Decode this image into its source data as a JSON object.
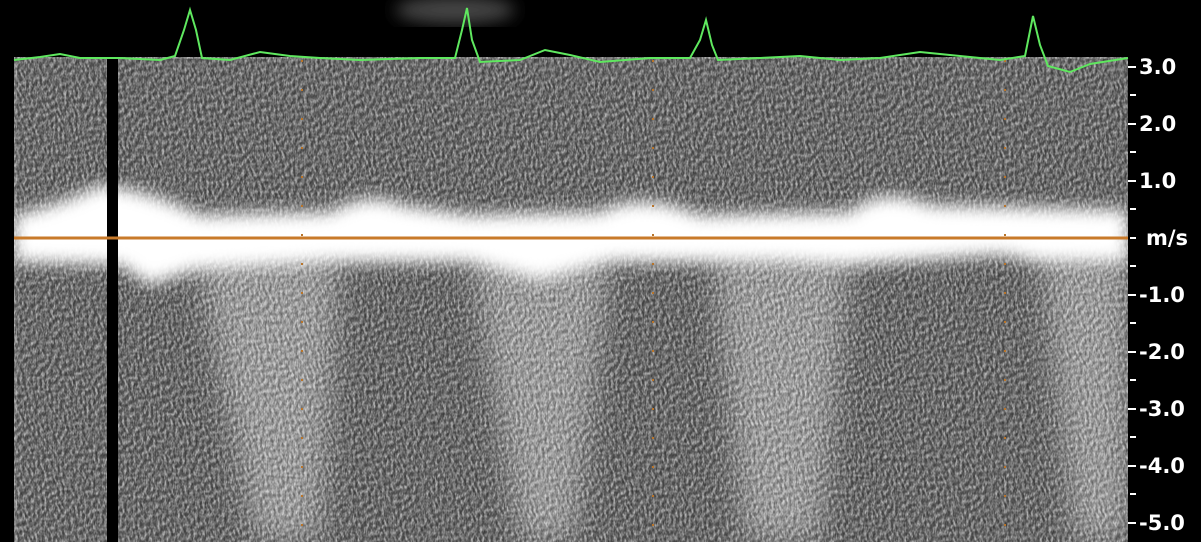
{
  "scale": {
    "unit": "m/s",
    "ticks": [
      {
        "value": 3,
        "label": "3.0"
      },
      {
        "value": 2,
        "label": "2.0"
      },
      {
        "value": 1,
        "label": "1.0"
      },
      {
        "value": -1,
        "label": "-1.0"
      },
      {
        "value": -2,
        "label": "-2.0"
      },
      {
        "value": -3,
        "label": "-3.0"
      },
      {
        "value": -4,
        "label": "-4.0"
      },
      {
        "value": -5,
        "label": "-5.0"
      }
    ]
  }
}
